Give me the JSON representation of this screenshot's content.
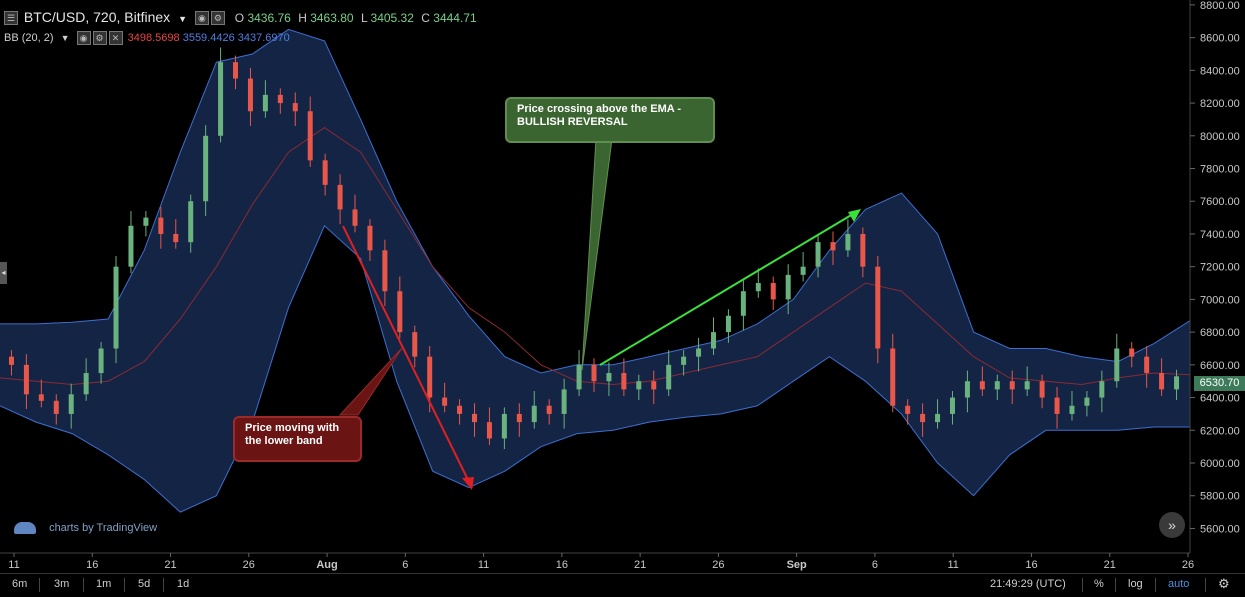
{
  "header": {
    "symbol": "BTC/USD, 720, Bitfinex",
    "ohlc": {
      "o_label": "O",
      "o": "3436.76",
      "h_label": "H",
      "h": "3463.80",
      "l_label": "L",
      "l": "3405.32",
      "c_label": "C",
      "c": "3444.71"
    },
    "indicator": "BB (20, 2)",
    "bb_mid": "3498.5698",
    "bb_upper": "3559.4426",
    "bb_lower": "3437.6970"
  },
  "annotations": {
    "bullish": "Price crossing above the EMA - BULLISH REVERSAL",
    "bearish": "Price moving with the lower band"
  },
  "branding": "charts by TradingView",
  "price_tag": "6530.70",
  "bottom_bar": {
    "ranges": [
      "6m",
      "3m",
      "1m",
      "5d",
      "1d"
    ],
    "time": "21:49:29 (UTC)",
    "percent": "%",
    "log": "log",
    "auto": "auto"
  },
  "colors": {
    "up": "#6ab27e",
    "down": "#e8574a",
    "band_fill": "#142445",
    "band_line": "#3c6fd0",
    "mid_line": "#8a2a33",
    "bg": "#000000"
  },
  "chart_data": {
    "type": "candlestick",
    "title": "BTC/USD, 720, Bitfinex",
    "y_axis_ticks": [
      8800,
      8600,
      8400,
      8200,
      8000,
      7800,
      7600,
      7400,
      7200,
      7000,
      6800,
      6600,
      6400,
      6200,
      6000,
      5800,
      5600
    ],
    "ylim": [
      5450,
      8830
    ],
    "x_axis_ticks": [
      "11",
      "16",
      "21",
      "26",
      "Aug",
      "6",
      "11",
      "16",
      "21",
      "26",
      "Sep",
      "6",
      "11",
      "16",
      "21",
      "26"
    ],
    "close_path": [
      6600,
      6420,
      6380,
      6300,
      6420,
      6550,
      6700,
      7200,
      7450,
      7500,
      7400,
      7350,
      7600,
      8000,
      8450,
      8350,
      8150,
      8250,
      8200,
      8150,
      7850,
      7700,
      7550,
      7450,
      7300,
      7050,
      6800,
      6650,
      6400,
      6350,
      6300,
      6250,
      6150,
      6300,
      6250,
      6350,
      6300,
      6450,
      6600,
      6500,
      6550,
      6450,
      6500,
      6450,
      6600,
      6650,
      6700,
      6800,
      6900,
      7050,
      7100,
      7000,
      7150,
      7200,
      7350,
      7300,
      7400,
      7200,
      6700,
      6350,
      6300,
      6250,
      6300,
      6400,
      6500,
      6450,
      6500,
      6450,
      6500,
      6400,
      6300,
      6350,
      6400,
      6500,
      6700,
      6650,
      6550,
      6450,
      6530
    ],
    "bollinger": {
      "upper": [
        6850,
        6850,
        6860,
        6880,
        7300,
        7900,
        8450,
        8500,
        8650,
        8580,
        8100,
        7600,
        7200,
        6900,
        6650,
        6550,
        6600,
        6600,
        6650,
        6700,
        6750,
        6850,
        7000,
        7300,
        7550,
        7650,
        7400,
        6800,
        6700,
        6700,
        6650,
        6620,
        6730,
        6870
      ],
      "middle": [
        6520,
        6500,
        6480,
        6500,
        6620,
        6880,
        7200,
        7580,
        7900,
        8050,
        7900,
        7550,
        7200,
        6950,
        6800,
        6600,
        6500,
        6480,
        6500,
        6550,
        6600,
        6650,
        6800,
        6950,
        7100,
        7050,
        6850,
        6650,
        6520,
        6500,
        6480,
        6520,
        6550,
        6540
      ],
      "lower": [
        6350,
        6250,
        6180,
        6050,
        5900,
        5700,
        5800,
        6250,
        6950,
        7450,
        7250,
        6500,
        5950,
        5850,
        5950,
        6100,
        6180,
        6200,
        6250,
        6280,
        6300,
        6350,
        6500,
        6650,
        6500,
        6300,
        6000,
        5800,
        6050,
        6200,
        6200,
        6200,
        6220,
        6220
      ]
    }
  }
}
